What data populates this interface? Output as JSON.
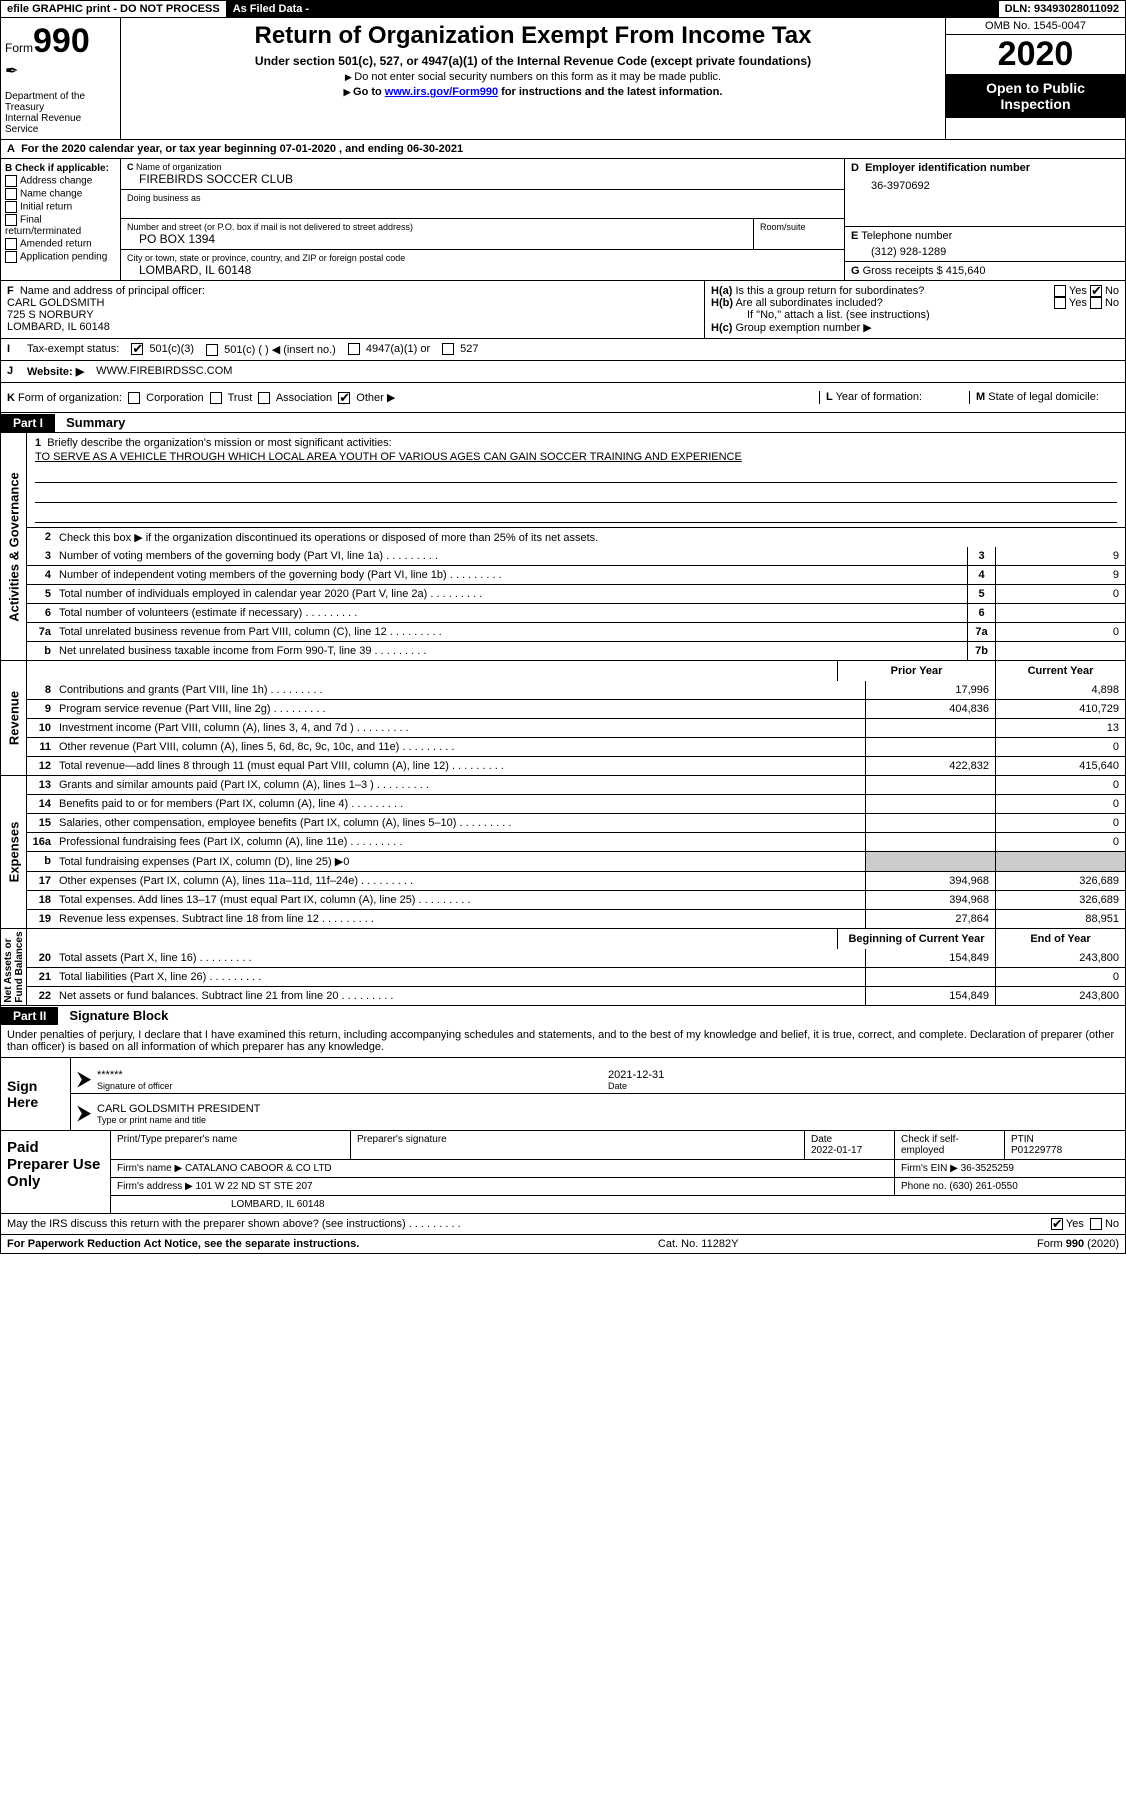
{
  "topbar": {
    "efile": "efile GRAPHIC print - DO NOT PROCESS",
    "asfiled": "As Filed Data -",
    "dln": "DLN: 93493028011092"
  },
  "header": {
    "form_label": "Form",
    "form_num": "990",
    "dept": "Department of the Treasury\nInternal Revenue Service",
    "title": "Return of Organization Exempt From Income Tax",
    "subtitle": "Under section 501(c), 527, or 4947(a)(1) of the Internal Revenue Code (except private foundations)",
    "note1": "Do not enter social security numbers on this form as it may be made public.",
    "note2_pre": "Go to ",
    "note2_link": "www.irs.gov/Form990",
    "note2_post": " for instructions and the latest information.",
    "omb": "OMB No. 1545-0047",
    "year": "2020",
    "open_public": "Open to Public Inspection"
  },
  "sec_a": "For the 2020 calendar year, or tax year beginning 07-01-2020   , and ending 06-30-2021",
  "sec_b": {
    "label": "Check if applicable:",
    "opts": [
      "Address change",
      "Name change",
      "Initial return",
      "Final return/terminated",
      "Amended return",
      "Application pending"
    ]
  },
  "sec_c": {
    "label": "Name of organization",
    "name": "FIREBIRDS SOCCER CLUB",
    "dba_label": "Doing business as",
    "street_label": "Number and street (or P.O. box if mail is not delivered to street address)",
    "room_label": "Room/suite",
    "street": "PO BOX 1394",
    "city_label": "City or town, state or province, country, and ZIP or foreign postal code",
    "city": "LOMBARD, IL  60148"
  },
  "sec_d": {
    "label": "Employer identification number",
    "val": "36-3970692"
  },
  "sec_e": {
    "label": "Telephone number",
    "val": "(312) 928-1289"
  },
  "sec_g": {
    "label": "Gross receipts $",
    "val": "415,640"
  },
  "sec_f": {
    "label": "Name and address of principal officer:",
    "name": "CARL GOLDSMITH",
    "addr1": "725 S NORBURY",
    "addr2": "LOMBARD, IL  60148"
  },
  "sec_h": {
    "a": "Is this a group return for subordinates?",
    "b": "Are all subordinates included?",
    "note": "If \"No,\" attach a list. (see instructions)",
    "c": "Group exemption number ▶"
  },
  "sec_i": {
    "label": "Tax-exempt status:",
    "opts": [
      "501(c)(3)",
      "501(c) (   ) ◀ (insert no.)",
      "4947(a)(1) or",
      "527"
    ]
  },
  "sec_j": {
    "label": "Website: ▶",
    "val": "WWW.FIREBIRDSSC.COM"
  },
  "sec_k": {
    "label": "Form of organization:",
    "opts": [
      "Corporation",
      "Trust",
      "Association",
      "Other ▶"
    ],
    "checked": 3
  },
  "sec_l": "Year of formation:",
  "sec_m": "State of legal domicile:",
  "part1": {
    "hdr": "Part I",
    "title": "Summary",
    "mission_label": "Briefly describe the organization's mission or most significant activities:",
    "mission": "TO SERVE AS A VEHICLE THROUGH WHICH LOCAL AREA YOUTH OF VARIOUS AGES CAN GAIN SOCCER TRAINING AND EXPERIENCE",
    "line2": "Check this box ▶        if the organization discontinued its operations or disposed of more than 25% of its net assets.",
    "gov_lines": [
      {
        "n": "3",
        "d": "Number of voting members of the governing body (Part VI, line 1a)",
        "box": "3",
        "v": "9"
      },
      {
        "n": "4",
        "d": "Number of independent voting members of the governing body (Part VI, line 1b)",
        "box": "4",
        "v": "9"
      },
      {
        "n": "5",
        "d": "Total number of individuals employed in calendar year 2020 (Part V, line 2a)",
        "box": "5",
        "v": "0"
      },
      {
        "n": "6",
        "d": "Total number of volunteers (estimate if necessary)",
        "box": "6",
        "v": ""
      },
      {
        "n": "7a",
        "d": "Total unrelated business revenue from Part VIII, column (C), line 12",
        "box": "7a",
        "v": "0"
      },
      {
        "n": "b",
        "d": "Net unrelated business taxable income from Form 990-T, line 39",
        "box": "7b",
        "v": ""
      }
    ],
    "col_hdr": {
      "prior": "Prior Year",
      "current": "Current Year"
    },
    "rev_lines": [
      {
        "n": "8",
        "d": "Contributions and grants (Part VIII, line 1h)",
        "p": "17,996",
        "c": "4,898"
      },
      {
        "n": "9",
        "d": "Program service revenue (Part VIII, line 2g)",
        "p": "404,836",
        "c": "410,729"
      },
      {
        "n": "10",
        "d": "Investment income (Part VIII, column (A), lines 3, 4, and 7d )",
        "p": "",
        "c": "13"
      },
      {
        "n": "11",
        "d": "Other revenue (Part VIII, column (A), lines 5, 6d, 8c, 9c, 10c, and 11e)",
        "p": "",
        "c": "0"
      },
      {
        "n": "12",
        "d": "Total revenue—add lines 8 through 11 (must equal Part VIII, column (A), line 12)",
        "p": "422,832",
        "c": "415,640"
      }
    ],
    "exp_lines": [
      {
        "n": "13",
        "d": "Grants and similar amounts paid (Part IX, column (A), lines 1–3 )",
        "p": "",
        "c": "0"
      },
      {
        "n": "14",
        "d": "Benefits paid to or for members (Part IX, column (A), line 4)",
        "p": "",
        "c": "0"
      },
      {
        "n": "15",
        "d": "Salaries, other compensation, employee benefits (Part IX, column (A), lines 5–10)",
        "p": "",
        "c": "0"
      },
      {
        "n": "16a",
        "d": "Professional fundraising fees (Part IX, column (A), line 11e)",
        "p": "",
        "c": "0"
      },
      {
        "n": "b",
        "d": "Total fundraising expenses (Part IX, column (D), line 25) ▶0",
        "p": "",
        "c": ""
      },
      {
        "n": "17",
        "d": "Other expenses (Part IX, column (A), lines 11a–11d, 11f–24e)",
        "p": "394,968",
        "c": "326,689"
      },
      {
        "n": "18",
        "d": "Total expenses. Add lines 13–17 (must equal Part IX, column (A), line 25)",
        "p": "394,968",
        "c": "326,689"
      },
      {
        "n": "19",
        "d": "Revenue less expenses. Subtract line 18 from line 12",
        "p": "27,864",
        "c": "88,951"
      }
    ],
    "net_hdr": {
      "begin": "Beginning of Current Year",
      "end": "End of Year"
    },
    "net_lines": [
      {
        "n": "20",
        "d": "Total assets (Part X, line 16)",
        "p": "154,849",
        "c": "243,800"
      },
      {
        "n": "21",
        "d": "Total liabilities (Part X, line 26)",
        "p": "",
        "c": "0"
      },
      {
        "n": "22",
        "d": "Net assets or fund balances. Subtract line 21 from line 20",
        "p": "154,849",
        "c": "243,800"
      }
    ],
    "tabs": {
      "gov": "Activities & Governance",
      "rev": "Revenue",
      "exp": "Expenses",
      "net": "Net Assets or\nFund Balances"
    }
  },
  "part2": {
    "hdr": "Part II",
    "title": "Signature Block",
    "decl": "Under penalties of perjury, I declare that I have examined this return, including accompanying schedules and statements, and to the best of my knowledge and belief, it is true, correct, and complete. Declaration of preparer (other than officer) is based on all information of which preparer has any knowledge."
  },
  "sign": {
    "label": "Sign Here",
    "stars": "******",
    "sig_label": "Signature of officer",
    "date": "2021-12-31",
    "date_label": "Date",
    "name": "CARL GOLDSMITH  PRESIDENT",
    "name_label": "Type or print name and title"
  },
  "prep": {
    "label": "Paid Preparer Use Only",
    "r1": {
      "a": "Print/Type preparer's name",
      "b": "Preparer's signature",
      "c": "Date",
      "cv": "2022-01-17",
      "d": "Check         if self-employed",
      "e": "PTIN",
      "ev": "P01229778"
    },
    "r2": {
      "a": "Firm's name   ▶",
      "av": "CATALANO CABOOR & CO LTD",
      "b": "Firm's EIN ▶",
      "bv": "36-3525259"
    },
    "r3": {
      "a": "Firm's address ▶",
      "av": "101 W 22 ND ST STE 207",
      "b": "Phone no.",
      "bv": "(630) 261-0550"
    },
    "r4": "LOMBARD, IL  60148"
  },
  "footer": {
    "q": "May the IRS discuss this return with the preparer shown above? (see instructions)",
    "paperwork": "For Paperwork Reduction Act Notice, see the separate instructions.",
    "cat": "Cat. No. 11282Y",
    "form": "Form 990 (2020)"
  }
}
